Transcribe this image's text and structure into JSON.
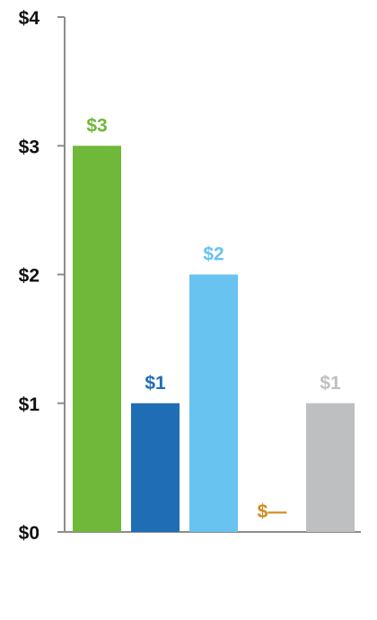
{
  "chart_data": {
    "type": "bar",
    "categories": [
      "",
      "",
      "",
      "",
      ""
    ],
    "values": [
      3,
      1,
      2,
      0,
      1
    ],
    "data_labels": [
      "$3",
      "$1",
      "$2",
      "$—",
      "$1"
    ],
    "colors": [
      "#6fb83a",
      "#1f6db5",
      "#68c3f0",
      "#d08a1e",
      "#bebfc1"
    ],
    "ylim": [
      0,
      4
    ],
    "yticks": [
      0,
      1,
      2,
      3,
      4
    ],
    "ytick_labels": [
      "$0",
      "$1",
      "$2",
      "$3",
      "$4"
    ],
    "grid": false,
    "axis_color": "#8c8c8c",
    "title": "",
    "xlabel": "",
    "ylabel": ""
  }
}
